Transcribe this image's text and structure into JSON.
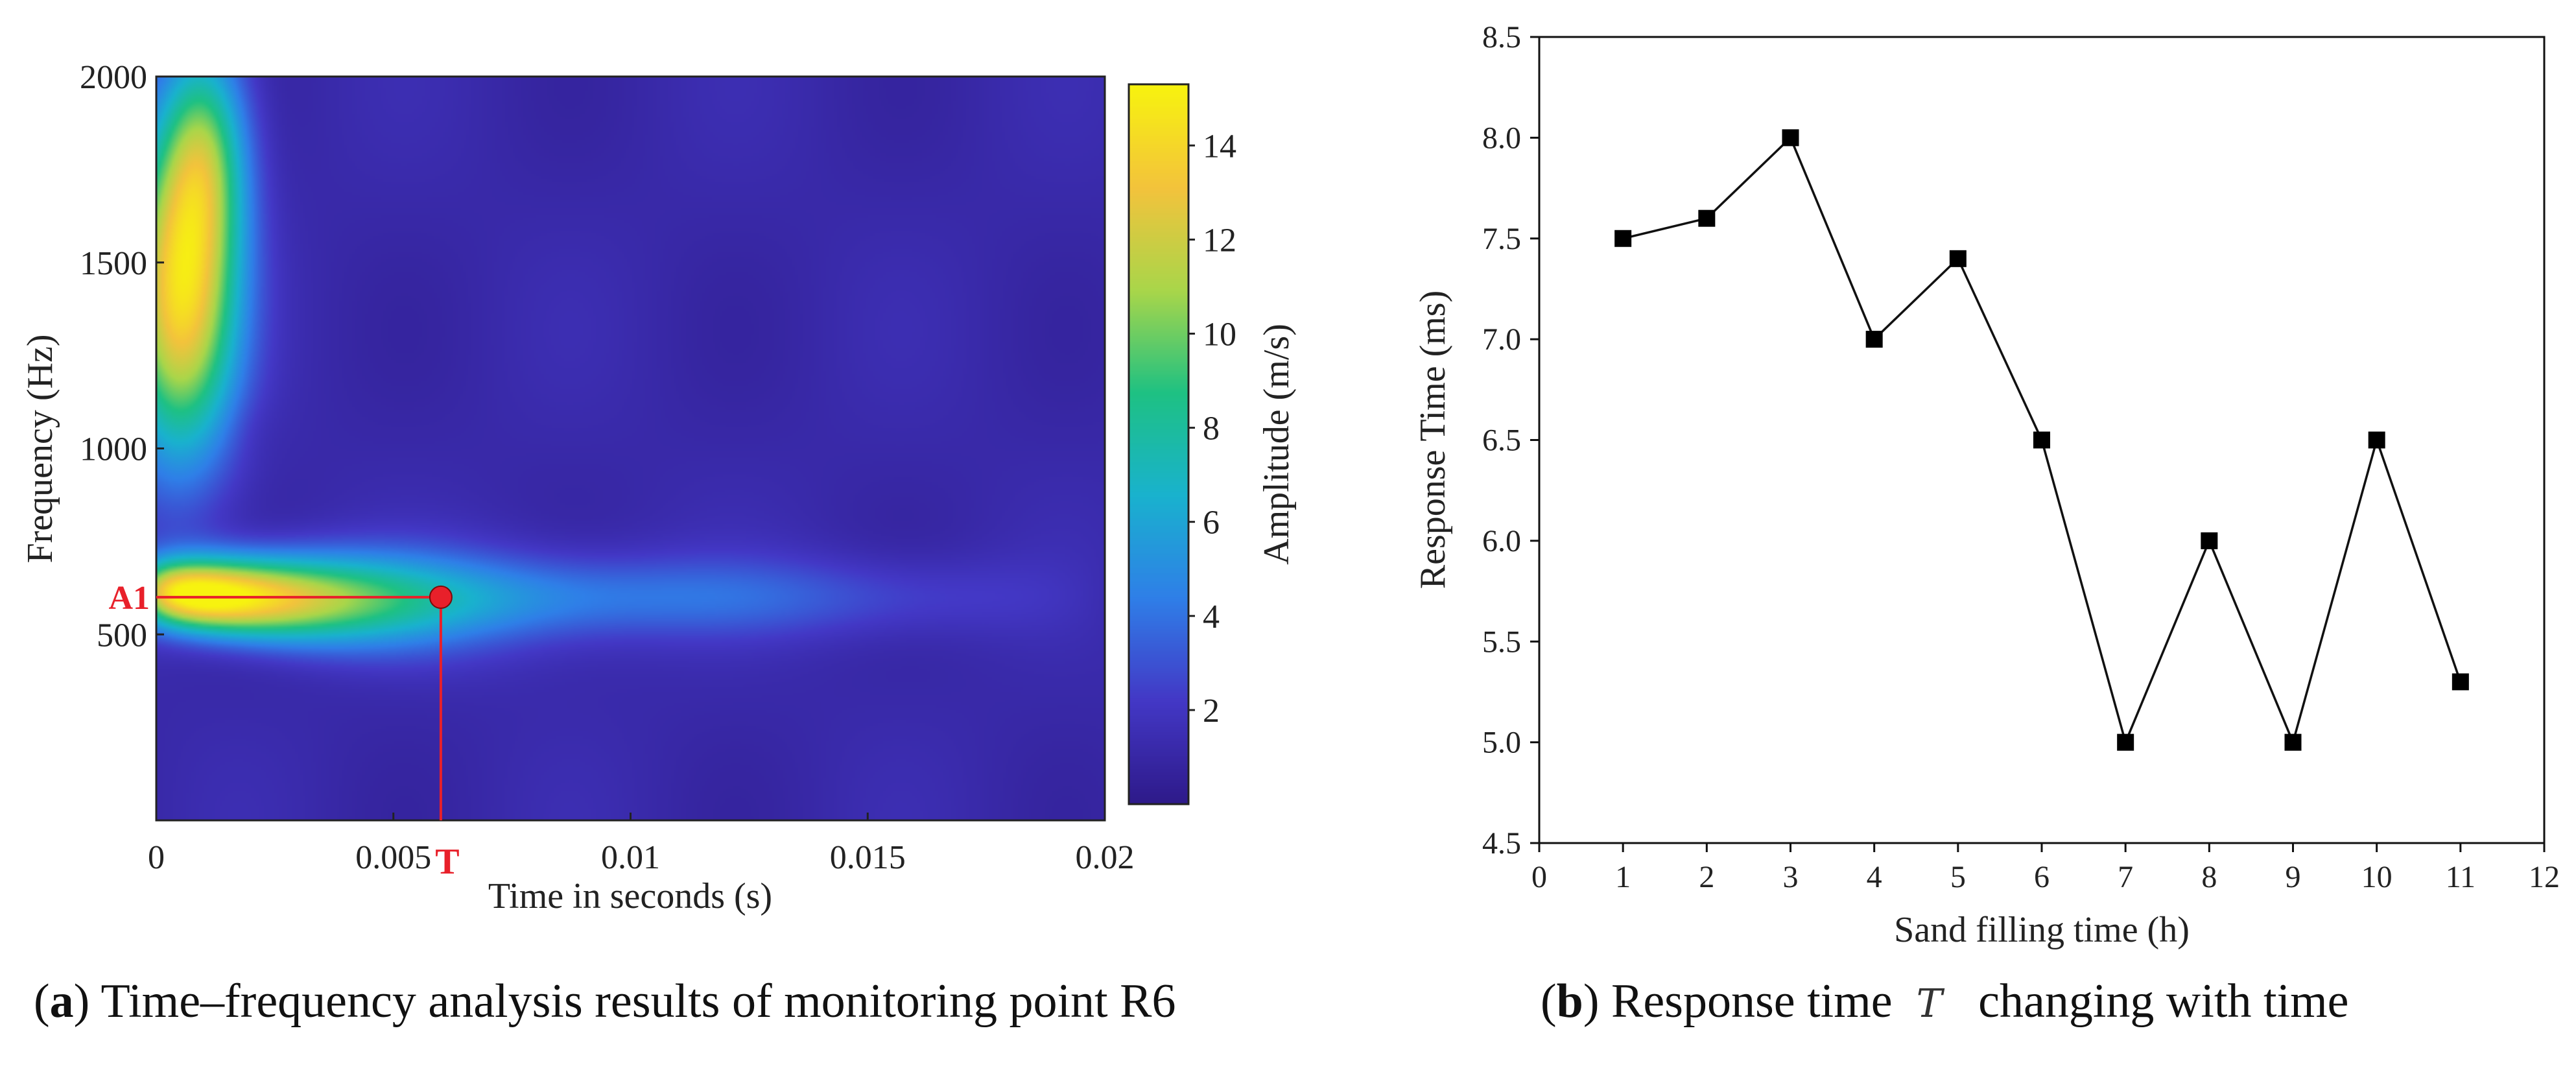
{
  "chart_data": [
    {
      "type": "heatmap",
      "panel_label": "a",
      "title": "Time–frequency analysis results of monitoring point R6",
      "xlabel": "Time in seconds (s)",
      "ylabel": "Frequency (Hz)",
      "xlim": [
        0,
        0.02
      ],
      "ylim": [
        0,
        2000
      ],
      "x_ticks": [
        0,
        0.005,
        0.01,
        0.015,
        0.02
      ],
      "x_tick_labels": [
        "0",
        "0.005",
        "0.01",
        "0.015",
        "0.02"
      ],
      "y_ticks": [
        500,
        1000,
        1500,
        2000
      ],
      "y_tick_labels": [
        "500",
        "1000",
        "1500",
        "2000"
      ],
      "colorbar": {
        "label": "Amplitude (m/s)",
        "range": [
          0,
          15.3
        ],
        "ticks": [
          2,
          4,
          6,
          8,
          10,
          12,
          14
        ],
        "tick_labels": [
          "2",
          "4",
          "6",
          "8",
          "10",
          "12",
          "14"
        ],
        "colors": [
          "#2e1a8a",
          "#4338c6",
          "#2f7fe8",
          "#19b2ce",
          "#1ec183",
          "#a9d64a",
          "#f3c33c",
          "#f7f30f"
        ]
      },
      "field_components": [
        {
          "name": "main horizontal band",
          "t0": 0.0,
          "t1": 0.0175,
          "f_center": 575,
          "peak": 15.0,
          "t_decay": 0.0045,
          "f_spread": 85
        },
        {
          "name": "weak horizontal tail",
          "t0": 0.0,
          "t1": 0.02,
          "f_center": 600,
          "peak": 3.2,
          "t_decay": 0.02,
          "f_spread": 110
        },
        {
          "name": "early high-frequency ridge",
          "t_center": 0.0005,
          "f_center": 1400,
          "peak": 12.5,
          "t_spread": 0.0012,
          "f_spread": 420
        },
        {
          "name": "vertical streak",
          "t_center": 0.001,
          "f_center": 1800,
          "peak": 7.0,
          "t_spread": 0.0009,
          "f_spread": 300
        }
      ],
      "background_level": 1.1,
      "annotation": {
        "point": {
          "x": 0.006,
          "y": 600
        },
        "x_label": "T",
        "y_label": "A1",
        "color": "#e8202a"
      }
    },
    {
      "type": "line",
      "panel_label": "b",
      "title_prefix": "Response time",
      "title_symbol": "T",
      "title_suffix": "changing with time",
      "xlabel": "Sand filling time (h)",
      "ylabel": "Response Time (ms)",
      "xlim": [
        0,
        12
      ],
      "ylim": [
        4.5,
        8.5
      ],
      "x_ticks": [
        0,
        1,
        2,
        3,
        4,
        5,
        6,
        7,
        8,
        9,
        10,
        11,
        12
      ],
      "x_tick_labels": [
        "0",
        "1",
        "2",
        "3",
        "4",
        "5",
        "6",
        "7",
        "8",
        "9",
        "10",
        "11",
        "12"
      ],
      "y_ticks": [
        4.5,
        5.0,
        5.5,
        6.0,
        6.5,
        7.0,
        7.5,
        8.0,
        8.5
      ],
      "y_tick_labels": [
        "4.5",
        "5.0",
        "5.5",
        "6.0",
        "6.5",
        "7.0",
        "7.5",
        "8.0",
        "8.5"
      ],
      "marker": "square",
      "series": [
        {
          "name": "Response time",
          "x": [
            1,
            2,
            3,
            4,
            5,
            6,
            7,
            8,
            9,
            10,
            11
          ],
          "values": [
            7.5,
            7.6,
            8.0,
            7.0,
            7.4,
            6.5,
            5.0,
            6.0,
            5.0,
            6.5,
            5.3
          ]
        }
      ]
    }
  ]
}
